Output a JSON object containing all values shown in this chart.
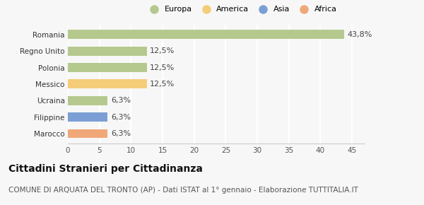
{
  "categories": [
    "Marocco",
    "Filippine",
    "Ucraina",
    "Messico",
    "Polonia",
    "Regno Unito",
    "Romania"
  ],
  "values": [
    6.3,
    6.3,
    6.3,
    12.5,
    12.5,
    12.5,
    43.8
  ],
  "labels": [
    "6,3%",
    "6,3%",
    "6,3%",
    "12,5%",
    "12,5%",
    "12,5%",
    "43,8%"
  ],
  "bar_colors": [
    "#f0a878",
    "#7b9fd4",
    "#b5c98e",
    "#f5cc78",
    "#b5c98e",
    "#b5c98e",
    "#b5c98e"
  ],
  "legend_labels": [
    "Europa",
    "America",
    "Asia",
    "Africa"
  ],
  "legend_colors": [
    "#b5c98e",
    "#f5cc78",
    "#7b9fd4",
    "#f0a878"
  ],
  "title": "Cittadini Stranieri per Cittadinanza",
  "subtitle": "COMUNE DI ARQUATA DEL TRONTO (AP) - Dati ISTAT al 1° gennaio - Elaborazione TUTTITALIA.IT",
  "xlim": [
    0,
    47
  ],
  "xticks": [
    0,
    5,
    10,
    15,
    20,
    25,
    30,
    35,
    40,
    45
  ],
  "background_color": "#f7f7f7",
  "grid_color": "#ffffff",
  "title_fontsize": 10,
  "subtitle_fontsize": 7.5,
  "label_fontsize": 8,
  "tick_fontsize": 7.5,
  "legend_fontsize": 8
}
